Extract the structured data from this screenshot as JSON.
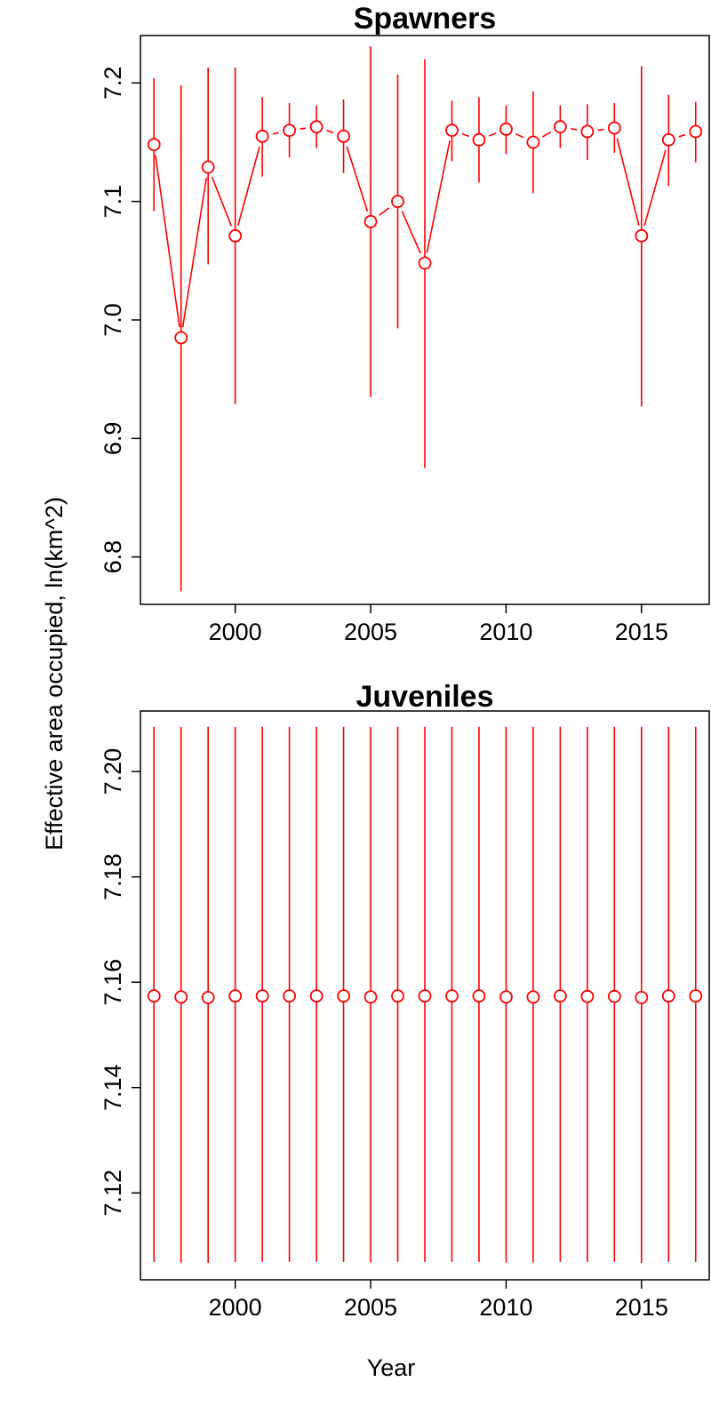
{
  "figure": {
    "ylabel": "Effective area occupied, ln(km^2)",
    "xlabel": "Year"
  },
  "chart_data": [
    {
      "type": "scatter",
      "title": "Spawners",
      "xlabel": "Year",
      "ylabel": "Effective area occupied, ln(km^2)",
      "xlim": [
        1996.5,
        2017.5
      ],
      "ylim": [
        6.76,
        7.24
      ],
      "x_ticks": [
        2000,
        2005,
        2010,
        2015
      ],
      "x_tick_labels": [
        "2000",
        "2005",
        "2010",
        "2015"
      ],
      "y_ticks": [
        6.8,
        6.9,
        7.0,
        7.1,
        7.2
      ],
      "y_tick_labels": [
        "6.8",
        "6.9",
        "7.0",
        "7.1",
        "7.2"
      ],
      "color": "#ff0000",
      "connect_points": true,
      "x": [
        1997,
        1998,
        1999,
        2000,
        2001,
        2002,
        2003,
        2004,
        2005,
        2006,
        2007,
        2008,
        2009,
        2010,
        2011,
        2012,
        2013,
        2014,
        2015,
        2016,
        2017
      ],
      "y": [
        7.148,
        6.985,
        7.129,
        7.071,
        7.155,
        7.16,
        7.163,
        7.155,
        7.083,
        7.1,
        7.048,
        7.16,
        7.152,
        7.161,
        7.15,
        7.163,
        7.159,
        7.162,
        7.071,
        7.152,
        7.159
      ],
      "lower": [
        7.092,
        6.771,
        7.047,
        6.929,
        7.121,
        7.137,
        7.145,
        7.124,
        6.935,
        6.993,
        6.875,
        7.134,
        7.116,
        7.14,
        7.107,
        7.145,
        7.135,
        7.141,
        6.927,
        7.113,
        7.133
      ],
      "upper": [
        7.204,
        7.198,
        7.213,
        7.213,
        7.188,
        7.183,
        7.181,
        7.186,
        7.231,
        7.207,
        7.22,
        7.185,
        7.188,
        7.181,
        7.193,
        7.181,
        7.182,
        7.183,
        7.214,
        7.19,
        7.184
      ]
    },
    {
      "type": "scatter",
      "title": "Juveniles",
      "xlabel": "Year",
      "ylabel": "Effective area occupied, ln(km^2)",
      "xlim": [
        1996.5,
        2017.5
      ],
      "ylim": [
        7.1035,
        7.2115
      ],
      "x_ticks": [
        2000,
        2005,
        2010,
        2015
      ],
      "x_tick_labels": [
        "2000",
        "2005",
        "2010",
        "2015"
      ],
      "y_ticks": [
        7.12,
        7.14,
        7.16,
        7.18,
        7.2
      ],
      "y_tick_labels": [
        "7.12",
        "7.14",
        "7.16",
        "7.18",
        "7.20"
      ],
      "color": "#ff0000",
      "connect_points": false,
      "x": [
        1997,
        1998,
        1999,
        2000,
        2001,
        2002,
        2003,
        2004,
        2005,
        2006,
        2007,
        2008,
        2009,
        2010,
        2011,
        2012,
        2013,
        2014,
        2015,
        2016,
        2017
      ],
      "y": [
        7.1574,
        7.1572,
        7.1571,
        7.1574,
        7.1574,
        7.1574,
        7.1574,
        7.1574,
        7.1572,
        7.1574,
        7.1574,
        7.1574,
        7.1574,
        7.1572,
        7.1572,
        7.1574,
        7.1573,
        7.1573,
        7.1571,
        7.1574,
        7.1574
      ],
      "lower": [
        7.1069,
        7.1068,
        7.1067,
        7.1069,
        7.1069,
        7.1069,
        7.1069,
        7.1069,
        7.1068,
        7.1069,
        7.1069,
        7.1069,
        7.1069,
        7.1068,
        7.1068,
        7.1069,
        7.1069,
        7.1069,
        7.1067,
        7.1069,
        7.1069
      ],
      "upper": [
        7.2085,
        7.2085,
        7.2085,
        7.2085,
        7.2085,
        7.2085,
        7.2085,
        7.2085,
        7.2085,
        7.2085,
        7.2085,
        7.2085,
        7.2085,
        7.2085,
        7.2085,
        7.2085,
        7.2085,
        7.2085,
        7.2085,
        7.2085,
        7.2085
      ]
    }
  ]
}
